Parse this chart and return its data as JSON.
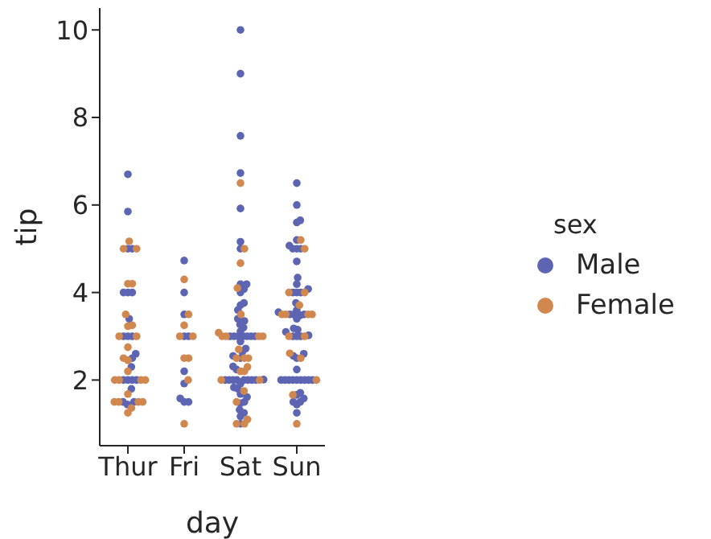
{
  "chart_data": {
    "type": "scatter",
    "xlabel": "day",
    "ylabel": "tip",
    "legend_title": "sex",
    "legend": "right",
    "marker": "circle",
    "grid": false,
    "categories": [
      "Thur",
      "Fri",
      "Sat",
      "Sun"
    ],
    "ylim": [
      0.5,
      10.5
    ],
    "yticks": [
      2,
      4,
      6,
      8,
      10
    ],
    "series": [
      {
        "name": "Male",
        "color": "#5d65b3",
        "x": [
          "Thur",
          "Thur",
          "Thur",
          "Thur",
          "Thur",
          "Thur",
          "Thur",
          "Thur",
          "Thur",
          "Thur",
          "Thur",
          "Thur",
          "Thur",
          "Thur",
          "Thur",
          "Thur",
          "Thur",
          "Thur",
          "Thur",
          "Thur",
          "Thur",
          "Thur",
          "Fri",
          "Fri",
          "Fri",
          "Fri",
          "Fri",
          "Fri",
          "Fri",
          "Fri",
          "Fri",
          "Fri",
          "Sat",
          "Sat",
          "Sat",
          "Sat",
          "Sat",
          "Sat",
          "Sat",
          "Sat",
          "Sat",
          "Sat",
          "Sat",
          "Sat",
          "Sat",
          "Sat",
          "Sat",
          "Sat",
          "Sat",
          "Sat",
          "Sat",
          "Sat",
          "Sat",
          "Sat",
          "Sat",
          "Sat",
          "Sat",
          "Sat",
          "Sat",
          "Sat",
          "Sat",
          "Sat",
          "Sat",
          "Sat",
          "Sat",
          "Sat",
          "Sat",
          "Sat",
          "Sat",
          "Sat",
          "Sat",
          "Sat",
          "Sat",
          "Sat",
          "Sat",
          "Sat",
          "Sat",
          "Sat",
          "Sat",
          "Sat",
          "Sat",
          "Sat",
          "Sat",
          "Sat",
          "Sat",
          "Sun",
          "Sun",
          "Sun",
          "Sun",
          "Sun",
          "Sun",
          "Sun",
          "Sun",
          "Sun",
          "Sun",
          "Sun",
          "Sun",
          "Sun",
          "Sun",
          "Sun",
          "Sun",
          "Sun",
          "Sun",
          "Sun",
          "Sun",
          "Sun",
          "Sun",
          "Sun",
          "Sun",
          "Sun",
          "Sun",
          "Sun",
          "Sun",
          "Sun",
          "Sun",
          "Sun",
          "Sun",
          "Sun",
          "Sun",
          "Sun",
          "Sun",
          "Sun",
          "Sun",
          "Sun",
          "Sun",
          "Sun",
          "Sun",
          "Sun",
          "Sun",
          "Sun",
          "Sun",
          "Sun",
          "Sun",
          "Sun",
          "Sun",
          "Sun"
        ],
        "values": [
          6.7,
          5.85,
          5.0,
          5.0,
          4.0,
          4.0,
          4.0,
          3.4,
          3.0,
          3.0,
          3.0,
          2.6,
          2.5,
          2.3,
          2.0,
          2.0,
          2.0,
          2.0,
          1.8,
          1.5,
          1.5,
          1.44,
          4.73,
          4.0,
          3.5,
          3.0,
          3.0,
          2.2,
          1.92,
          1.5,
          1.5,
          1.58,
          10.0,
          9.0,
          7.58,
          6.73,
          5.92,
          5.16,
          5.0,
          4.19,
          4.19,
          4.08,
          4.0,
          3.76,
          3.6,
          3.71,
          3.4,
          3.35,
          3.27,
          3.2,
          3.11,
          3.0,
          3.0,
          3.0,
          3.0,
          3.0,
          3.0,
          3.0,
          2.88,
          2.72,
          2.64,
          2.55,
          2.5,
          2.31,
          2.24,
          2.01,
          2.0,
          2.0,
          2.0,
          2.0,
          2.0,
          2.0,
          2.0,
          2.0,
          1.92,
          1.83,
          1.8,
          1.68,
          1.61,
          1.5,
          1.47,
          1.32,
          1.25,
          1.0,
          1.17,
          6.5,
          6.0,
          5.65,
          5.6,
          5.07,
          5.0,
          5.0,
          5.0,
          5.2,
          4.71,
          4.34,
          4.19,
          4.0,
          4.0,
          4.0,
          4.08,
          3.76,
          3.6,
          3.55,
          3.5,
          3.5,
          3.5,
          3.48,
          3.4,
          3.18,
          3.15,
          3.1,
          3.0,
          3.0,
          3.0,
          3.02,
          2.6,
          2.55,
          2.5,
          2.24,
          2.0,
          2.0,
          2.0,
          2.0,
          2.0,
          2.0,
          2.0,
          2.0,
          2.0,
          1.71,
          1.66,
          1.58,
          1.5,
          1.5,
          1.25,
          1.44
        ]
      },
      {
        "name": "Female",
        "color": "#d1884f",
        "x": [
          "Thur",
          "Thur",
          "Thur",
          "Thur",
          "Thur",
          "Thur",
          "Thur",
          "Thur",
          "Thur",
          "Thur",
          "Thur",
          "Thur",
          "Thur",
          "Thur",
          "Thur",
          "Thur",
          "Thur",
          "Thur",
          "Thur",
          "Thur",
          "Thur",
          "Thur",
          "Thur",
          "Thur",
          "Thur",
          "Fri",
          "Fri",
          "Fri",
          "Fri",
          "Fri",
          "Fri",
          "Fri",
          "Fri",
          "Fri",
          "Sat",
          "Sat",
          "Sat",
          "Sat",
          "Sat",
          "Sat",
          "Sat",
          "Sat",
          "Sat",
          "Sat",
          "Sat",
          "Sat",
          "Sat",
          "Sat",
          "Sat",
          "Sat",
          "Sat",
          "Sat",
          "Sat",
          "Sat",
          "Sat",
          "Sat",
          "Sat",
          "Sat",
          "Sun",
          "Sun",
          "Sun",
          "Sun",
          "Sun",
          "Sun",
          "Sun",
          "Sun",
          "Sun",
          "Sun",
          "Sun",
          "Sun",
          "Sun",
          "Sun",
          "Sun",
          "Sun"
        ],
        "values": [
          5.17,
          5.0,
          5.0,
          4.2,
          4.2,
          3.5,
          3.25,
          3.23,
          3.0,
          3.0,
          2.75,
          2.5,
          2.45,
          2.2,
          2.0,
          2.0,
          2.0,
          2.0,
          1.68,
          1.5,
          1.5,
          1.5,
          1.5,
          1.36,
          1.25,
          4.3,
          3.5,
          3.25,
          3.0,
          3.0,
          2.5,
          2.5,
          2.0,
          1.0,
          6.5,
          5.0,
          4.67,
          4.1,
          3.5,
          3.0,
          3.0,
          3.0,
          3.0,
          3.08,
          2.7,
          2.5,
          2.5,
          2.5,
          2.3,
          2.2,
          2.2,
          2.0,
          2.0,
          1.75,
          1.5,
          1.1,
          1.0,
          1.0,
          5.2,
          5.0,
          4.0,
          4.0,
          3.71,
          3.5,
          3.5,
          3.5,
          3.5,
          3.0,
          3.0,
          2.61,
          2.5,
          2.0,
          1.66,
          1.0
        ]
      }
    ]
  }
}
